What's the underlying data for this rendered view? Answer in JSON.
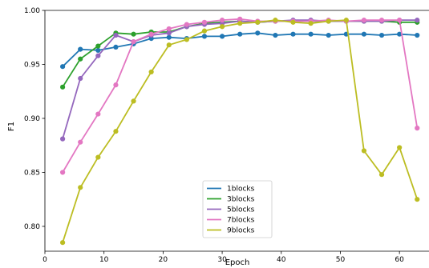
{
  "chart_data": {
    "type": "line",
    "xlabel": "Epoch",
    "ylabel": "F1",
    "xlim": [
      0,
      65
    ],
    "ylim": [
      0.777,
      1.0
    ],
    "xticks": [
      0,
      10,
      20,
      30,
      40,
      50,
      60
    ],
    "yticks": [
      0.8,
      0.85,
      0.9,
      0.95,
      1.0
    ],
    "xtick_labels": [
      "0",
      "10",
      "20",
      "30",
      "40",
      "50",
      "60"
    ],
    "ytick_labels": [
      "0.80",
      "0.85",
      "0.90",
      "0.95",
      "1.00"
    ],
    "grid": false,
    "legend_position": "lower-center",
    "x": [
      3,
      6,
      9,
      12,
      15,
      18,
      21,
      24,
      27,
      30,
      33,
      36,
      39,
      42,
      45,
      48,
      51,
      54,
      57,
      60,
      63
    ],
    "series": [
      {
        "name": "1blocks",
        "color": "#2077b4",
        "values": [
          0.948,
          0.964,
          0.963,
          0.966,
          0.969,
          0.974,
          0.975,
          0.974,
          0.976,
          0.976,
          0.978,
          0.979,
          0.977,
          0.978,
          0.978,
          0.977,
          0.978,
          0.978,
          0.977,
          0.978,
          0.977
        ]
      },
      {
        "name": "3blocks",
        "color": "#2ca02c",
        "values": [
          0.929,
          0.955,
          0.967,
          0.979,
          0.978,
          0.98,
          0.98,
          0.985,
          0.988,
          0.989,
          0.99,
          0.989,
          0.99,
          0.99,
          0.99,
          0.99,
          0.99,
          0.99,
          0.99,
          0.989,
          0.989
        ]
      },
      {
        "name": "5blocks",
        "color": "#9467bd",
        "values": [
          0.881,
          0.937,
          0.958,
          0.977,
          0.971,
          0.977,
          0.979,
          0.985,
          0.987,
          0.988,
          0.99,
          0.989,
          0.99,
          0.991,
          0.991,
          0.99,
          0.99,
          0.99,
          0.99,
          0.991,
          0.991
        ]
      },
      {
        "name": "7blocks",
        "color": "#e377c2",
        "values": [
          0.85,
          0.878,
          0.904,
          0.931,
          0.971,
          0.978,
          0.983,
          0.987,
          0.989,
          0.991,
          0.992,
          0.99,
          0.99,
          0.99,
          0.99,
          0.991,
          0.99,
          0.991,
          0.991,
          0.991,
          0.891
        ]
      },
      {
        "name": "9blocks",
        "color": "#bcbd22",
        "values": [
          0.785,
          0.836,
          0.864,
          0.888,
          0.916,
          0.943,
          0.968,
          0.973,
          0.981,
          0.985,
          0.988,
          0.989,
          0.991,
          0.989,
          0.988,
          0.99,
          0.991,
          0.87,
          0.848,
          0.873,
          0.825
        ]
      }
    ]
  }
}
